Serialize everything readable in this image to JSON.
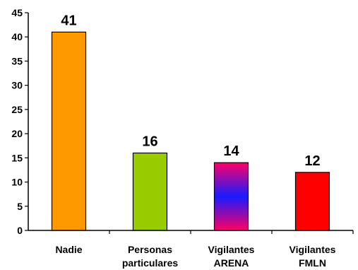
{
  "chart_data": {
    "type": "bar",
    "title": "",
    "xlabel": "",
    "ylabel": "",
    "ylim": [
      0,
      45
    ],
    "yticks": [
      "0",
      "5",
      "10",
      "15",
      "20",
      "25",
      "30",
      "35",
      "40",
      "45"
    ],
    "grid": false,
    "legend": "none",
    "categories": [
      [
        "Nadie"
      ],
      [
        "Personas",
        "particulares"
      ],
      [
        "Vigilantes",
        "ARENA"
      ],
      [
        "Vigilantes",
        "FMLN"
      ]
    ],
    "values": [
      41,
      16,
      14,
      12
    ],
    "data_labels": [
      "41",
      "16",
      "14",
      "12"
    ],
    "colors": [
      "#ff9900",
      "#99cc00",
      "gradient-pink-blue-pink",
      "#ff0000"
    ]
  }
}
